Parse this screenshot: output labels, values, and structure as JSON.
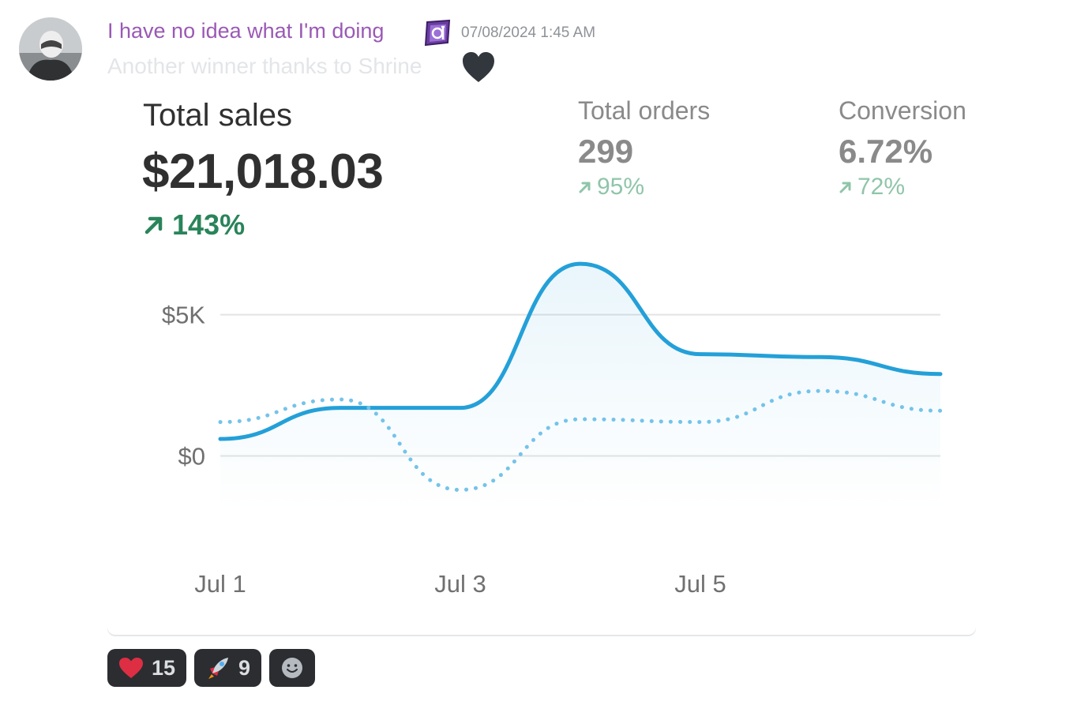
{
  "message": {
    "username": "I have no idea what I'm doing",
    "timestamp": "07/08/2024 1:45 AM",
    "text": "Another winner thanks to Shrine",
    "role_icon": "purple-badge-icon",
    "trailing_emoji": "black-heart-icon"
  },
  "card": {
    "total_sales": {
      "label": "Total sales",
      "value": "$21,018.03",
      "delta": "143%"
    },
    "total_orders": {
      "label": "Total orders",
      "value": "299",
      "delta": "95%"
    },
    "conversion": {
      "label": "Conversion",
      "value": "6.72%",
      "delta": "72%"
    }
  },
  "chart_data": {
    "type": "line",
    "categories": [
      "Jul 1",
      "",
      "Jul 3",
      "",
      "Jul 5",
      "",
      ""
    ],
    "x_tick_labels": [
      "Jul 1",
      "Jul 3",
      "Jul 5"
    ],
    "y_tick_labels": [
      "$5K",
      "$0"
    ],
    "ylim": [
      -2500,
      7000
    ],
    "series": [
      {
        "style": "solid",
        "values": [
          600,
          1700,
          1700,
          6800,
          3600,
          3500,
          2900
        ]
      },
      {
        "style": "dotted",
        "values": [
          1200,
          2000,
          -1200,
          1300,
          1200,
          2300,
          1600
        ]
      }
    ],
    "grid": true,
    "colors": {
      "primary": "#24a0d8",
      "comparison": "#74c3ea",
      "grid": "#e3e3e3"
    }
  },
  "reactions": [
    {
      "emoji": "red-heart-icon",
      "count": "15"
    },
    {
      "emoji": "rocket-icon",
      "count": "9"
    }
  ],
  "add_reaction_icon": "smiley-add-icon"
}
